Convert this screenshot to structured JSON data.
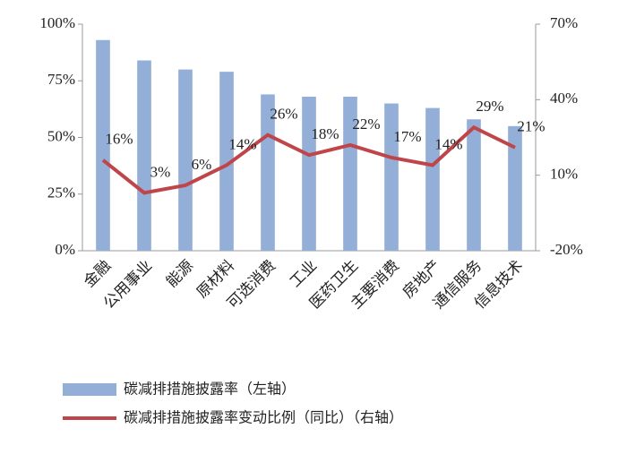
{
  "chart_data": {
    "type": "bar-line",
    "categories": [
      "金融",
      "公用事业",
      "能源",
      "原材料",
      "可选消费",
      "工业",
      "医药卫生",
      "主要消费",
      "房地产",
      "通信服务",
      "信息技术"
    ],
    "series": [
      {
        "name": "碳减排措施披露率（左轴）",
        "type": "bar",
        "color": "#93afd8",
        "axis": "y",
        "values": [
          93,
          84,
          80,
          79,
          69,
          68,
          68,
          65,
          63,
          58,
          55
        ]
      },
      {
        "name": "碳减排措施披露率变动比例（同比）（右轴）",
        "type": "line",
        "color": "#c0454a",
        "axis": "y2",
        "values": [
          16,
          3,
          6,
          14,
          26,
          18,
          22,
          17,
          14,
          29,
          21
        ],
        "value_labels": [
          "16%",
          "3%",
          "6%",
          "14%",
          "26%",
          "18%",
          "22%",
          "17%",
          "14%",
          "29%",
          "21%"
        ]
      }
    ],
    "ylim": [
      0,
      100
    ],
    "yticks": [
      {
        "value": 0,
        "label": "0%"
      },
      {
        "value": 25,
        "label": "25%"
      },
      {
        "value": 50,
        "label": "50%"
      },
      {
        "value": 75,
        "label": "75%"
      },
      {
        "value": 100,
        "label": "100%"
      }
    ],
    "y2lim": [
      -20,
      70
    ],
    "y2ticks": [
      {
        "value": -20,
        "label": "-20%"
      },
      {
        "value": 10,
        "label": "10%"
      },
      {
        "value": 40,
        "label": "40%"
      },
      {
        "value": 70,
        "label": "70%"
      }
    ]
  }
}
